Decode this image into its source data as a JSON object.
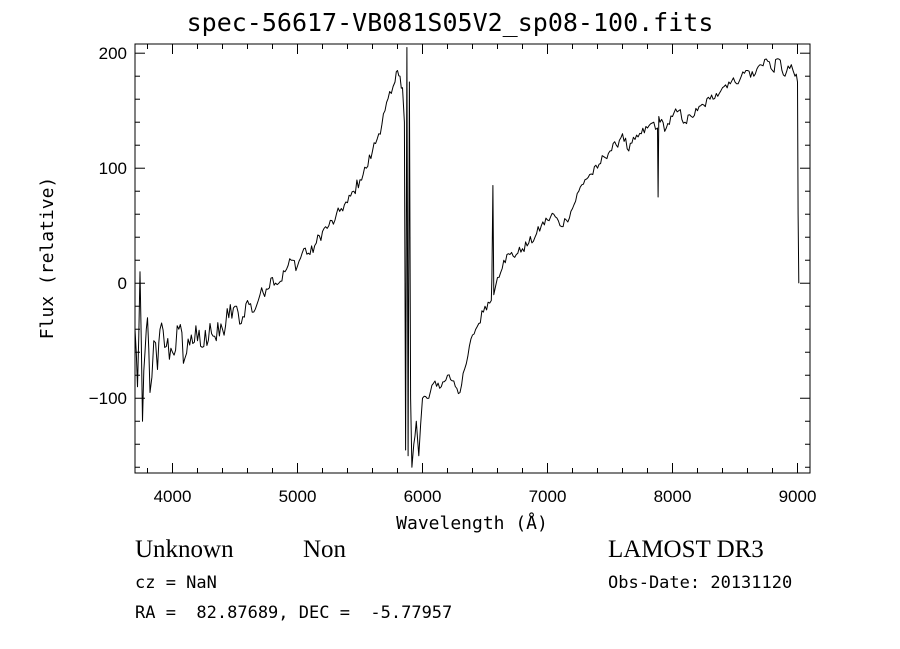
{
  "header": {
    "title": "spec-56617-VB081S05V2_sp08-100.fits"
  },
  "info": {
    "object_class": "Unknown",
    "object_subclass": "Non",
    "survey": "LAMOST DR3",
    "cz": "cz = NaN",
    "obs_date": "Obs-Date: 20131120",
    "radec": "RA =  82.87689, DEC =  -5.77957"
  },
  "chart_data": {
    "type": "line",
    "title": "spec-56617-VB081S05V2_sp08-100.fits",
    "xlabel": "Wavelength (Å)",
    "ylabel": "Flux (relative)",
    "xlim": [
      3700,
      9100
    ],
    "ylim": [
      -165,
      208
    ],
    "xticks": [
      4000,
      5000,
      6000,
      7000,
      8000,
      9000
    ],
    "xtick_labels": [
      "4000",
      "5000",
      "6000",
      "7000",
      "8000",
      "9000"
    ],
    "yticks": [
      -100,
      0,
      100,
      200
    ],
    "ytick_labels": [
      "−100",
      "0",
      "100",
      "200"
    ],
    "grid": false,
    "series": [
      {
        "line_color": "#000000",
        "x": [
          3700,
          3720,
          3740,
          3760,
          3780,
          3800,
          3820,
          3850,
          3880,
          3900,
          3950,
          4000,
          4050,
          4100,
          4150,
          4200,
          4250,
          4300,
          4350,
          4400,
          4450,
          4500,
          4550,
          4600,
          4650,
          4700,
          4750,
          4800,
          4850,
          4900,
          4950,
          5000,
          5050,
          5100,
          5150,
          5200,
          5250,
          5300,
          5350,
          5400,
          5450,
          5500,
          5550,
          5600,
          5650,
          5700,
          5750,
          5780,
          5800,
          5820,
          5840,
          5855,
          5865,
          5875,
          5885,
          5895,
          5905,
          5915,
          5930,
          5950,
          5970,
          6000,
          6050,
          6100,
          6150,
          6200,
          6250,
          6300,
          6350,
          6400,
          6450,
          6500,
          6550,
          6555,
          6563,
          6570,
          6600,
          6650,
          6700,
          6750,
          6800,
          6850,
          6900,
          6950,
          7000,
          7050,
          7100,
          7150,
          7200,
          7250,
          7300,
          7350,
          7400,
          7450,
          7500,
          7550,
          7600,
          7650,
          7700,
          7750,
          7800,
          7850,
          7880,
          7885,
          7890,
          7900,
          7950,
          8000,
          8050,
          8100,
          8150,
          8200,
          8250,
          8300,
          8350,
          8400,
          8450,
          8500,
          8550,
          8600,
          8650,
          8700,
          8750,
          8800,
          8850,
          8900,
          8950,
          8980,
          9000,
          9005,
          9010
        ],
        "y": [
          -40,
          -90,
          10,
          -120,
          -60,
          -30,
          -95,
          -50,
          -75,
          -40,
          -55,
          -60,
          -40,
          -65,
          -45,
          -50,
          -55,
          -35,
          -50,
          -40,
          -30,
          -20,
          -35,
          -15,
          -25,
          -10,
          -5,
          5,
          0,
          10,
          20,
          15,
          30,
          25,
          35,
          45,
          50,
          55,
          65,
          70,
          80,
          90,
          100,
          115,
          130,
          150,
          165,
          175,
          185,
          180,
          170,
          140,
          -145,
          205,
          -150,
          175,
          -100,
          -160,
          -140,
          -120,
          -150,
          -100,
          -100,
          -85,
          -90,
          -80,
          -85,
          -95,
          -70,
          -45,
          -35,
          -20,
          -15,
          5,
          85,
          -10,
          5,
          20,
          25,
          25,
          30,
          35,
          40,
          50,
          55,
          60,
          50,
          55,
          65,
          80,
          90,
          95,
          100,
          110,
          115,
          120,
          130,
          115,
          125,
          130,
          135,
          140,
          135,
          75,
          145,
          140,
          135,
          145,
          150,
          140,
          145,
          150,
          155,
          160,
          165,
          170,
          175,
          175,
          180,
          185,
          180,
          190,
          195,
          185,
          195,
          180,
          190,
          180,
          175,
          60,
          0
        ]
      }
    ]
  }
}
